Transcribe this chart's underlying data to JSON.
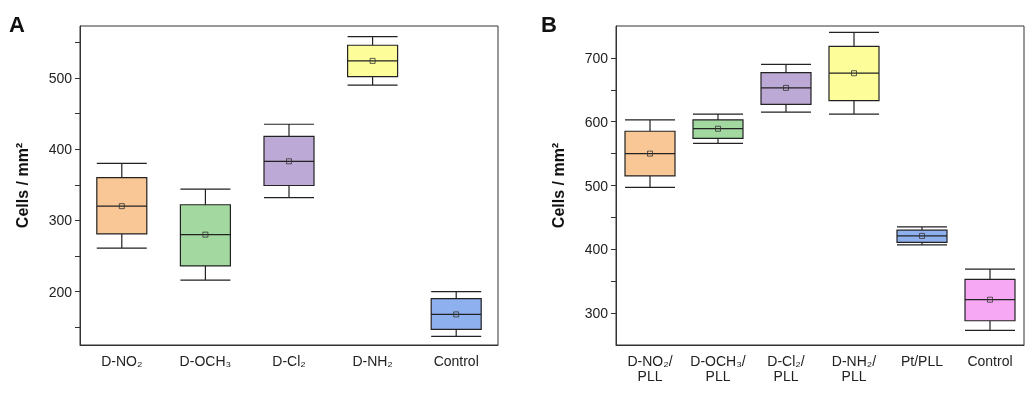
{
  "chart_data": [
    {
      "type": "box",
      "title": "A",
      "ylabel": "Cells / mm²",
      "categories": [
        "D-NO₂",
        "D-OCH₃",
        "D-Cl₂",
        "D-NH₂",
        "Control"
      ],
      "boxes": [
        {
          "low": 261,
          "q1": 281,
          "median": 320,
          "q3": 360,
          "high": 380,
          "mean": 320
        },
        {
          "low": 216,
          "q1": 236,
          "median": 280,
          "q3": 322,
          "high": 344,
          "mean": 280
        },
        {
          "low": 332,
          "q1": 349,
          "median": 383,
          "q3": 418,
          "high": 435,
          "mean": 383
        },
        {
          "low": 490,
          "q1": 502,
          "median": 524,
          "q3": 546,
          "high": 558,
          "mean": 524
        },
        {
          "low": 137,
          "q1": 147,
          "median": 168,
          "q3": 190,
          "high": 200,
          "mean": 168
        }
      ],
      "colors": [
        "#f9c795",
        "#a3d9a0",
        "#bda9d6",
        "#fdfd99",
        "#8fb0ef"
      ],
      "marker": "square",
      "ylim": [
        125,
        573
      ],
      "yticks": [
        {
          "value": 150,
          "label": null
        },
        200,
        {
          "value": 250,
          "label": null
        },
        300,
        {
          "value": 350,
          "label": null
        },
        400,
        {
          "value": 450,
          "label": null
        },
        500,
        {
          "value": 550,
          "label": null
        }
      ]
    },
    {
      "type": "box",
      "title": "B",
      "ylabel": "Cells / mm²",
      "categories": [
        "D-NO₂/\nPLL",
        "D-OCH₃/\nPLL",
        "D-Cl₂/\nPLL",
        "D-NH₂/\nPLL",
        "Pt/PLL",
        "Control"
      ],
      "boxes": [
        {
          "low": 497,
          "q1": 515,
          "median": 550,
          "q3": 585,
          "high": 603,
          "mean": 550
        },
        {
          "low": 566,
          "q1": 574,
          "median": 589,
          "q3": 603,
          "high": 612,
          "mean": 589
        },
        {
          "low": 615,
          "q1": 627,
          "median": 653,
          "q3": 677,
          "high": 690,
          "mean": 653
        },
        {
          "low": 612,
          "q1": 633,
          "median": 676,
          "q3": 718,
          "high": 740,
          "mean": 676
        },
        {
          "low": 407,
          "q1": 411,
          "median": 421,
          "q3": 430,
          "high": 435,
          "mean": 421
        },
        {
          "low": 273,
          "q1": 288,
          "median": 321,
          "q3": 353,
          "high": 369,
          "mean": 321
        }
      ],
      "colors": [
        "#f9c795",
        "#a3d9a0",
        "#bda9d6",
        "#fdfd99",
        "#8fb0ef",
        "#f6a8f4"
      ],
      "marker": "square",
      "ylim": [
        250,
        750
      ],
      "yticks": [
        300,
        {
          "value": 350,
          "label": null
        },
        400,
        {
          "value": 450,
          "label": null
        },
        500,
        {
          "value": 550,
          "label": null
        },
        600,
        {
          "value": 650,
          "label": null
        },
        700
      ]
    }
  ]
}
